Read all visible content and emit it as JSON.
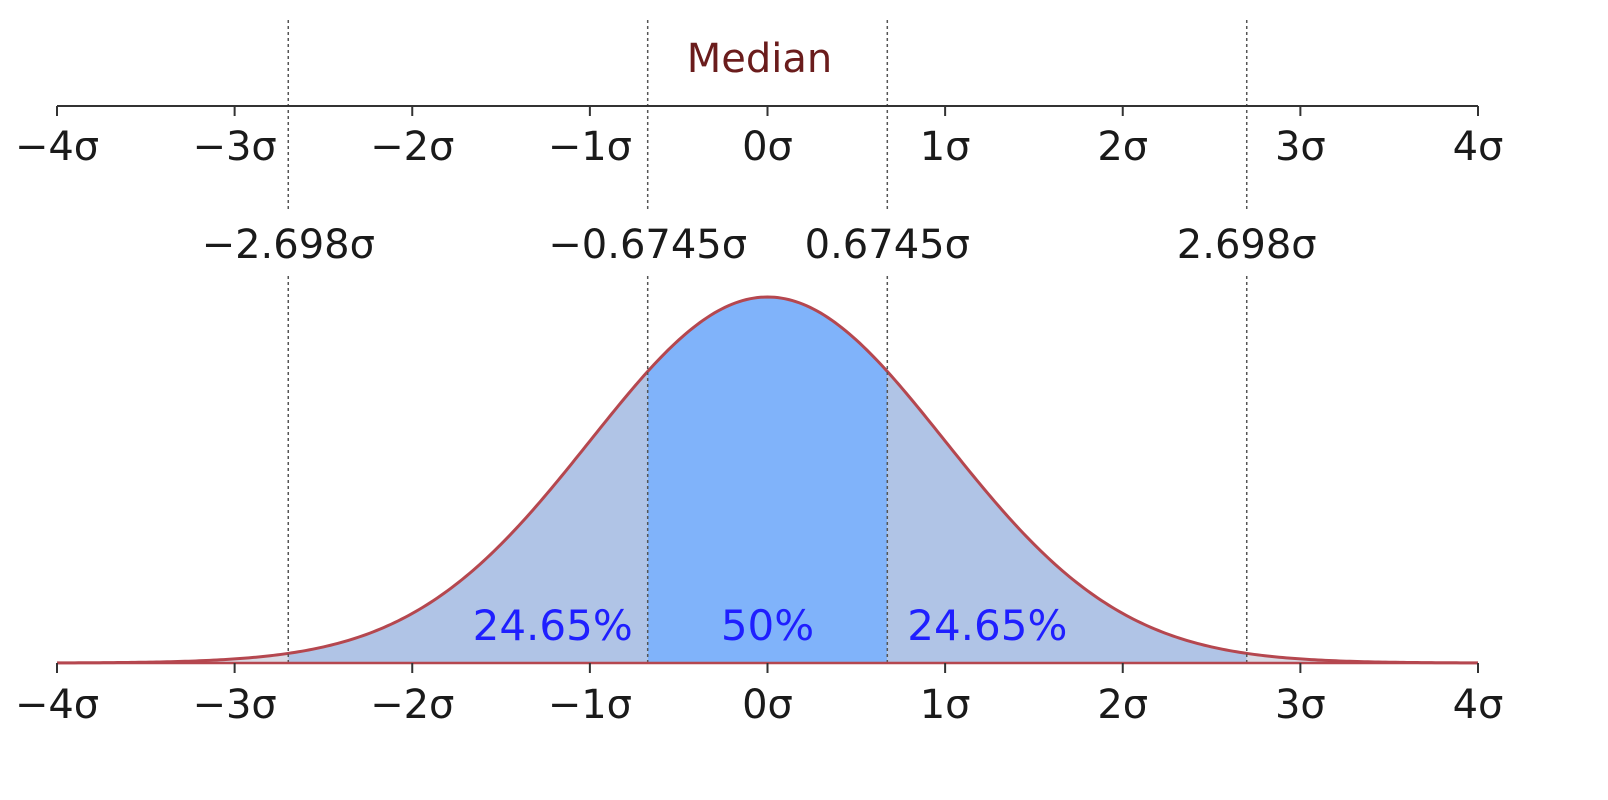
{
  "chart_data": {
    "type": "area",
    "distribution": "normal",
    "mean": 0,
    "sigma": 1,
    "xlim": [
      -4,
      4
    ],
    "x_ticks": [
      -4,
      -3,
      -2,
      -1,
      0,
      1,
      2,
      3,
      4
    ],
    "x_tick_labels": [
      "−4σ",
      "−3σ",
      "−2σ",
      "−1σ",
      "0σ",
      "1σ",
      "2σ",
      "3σ",
      "4σ"
    ],
    "quartile_lines": [
      {
        "x": -2.698,
        "label": "−2.698σ"
      },
      {
        "x": -0.6745,
        "label": "−0.6745σ"
      },
      {
        "x": 0.6745,
        "label": "0.6745σ"
      },
      {
        "x": 2.698,
        "label": "2.698σ"
      }
    ],
    "median_label": "Median",
    "regions": [
      {
        "from": -2.698,
        "to": -0.6745,
        "label": "24.65%",
        "color": "#b0c4e6"
      },
      {
        "from": -0.6745,
        "to": 0.6745,
        "label": "50%",
        "color": "#80b3fa"
      },
      {
        "from": 0.6745,
        "to": 2.698,
        "label": "24.65%",
        "color": "#b0c4e6"
      }
    ],
    "tail_color": "#d9dbe6",
    "curve_color": "#b5474f",
    "label_color": "#1f1fff",
    "median_color": "#6a1c1c"
  }
}
